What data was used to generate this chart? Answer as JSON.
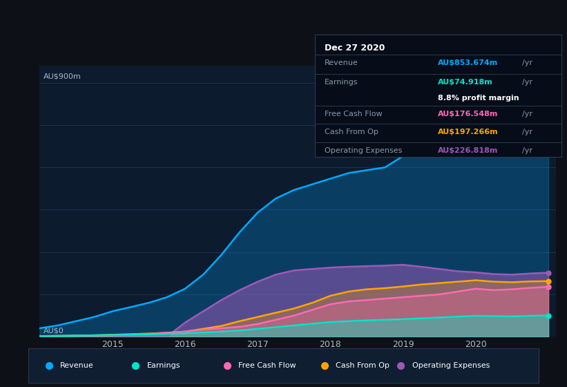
{
  "bg_color": "#0d1117",
  "plot_bg_color": "#0d1b2e",
  "grid_color": "#1e3050",
  "series": {
    "Revenue": {
      "color": "#00aaff",
      "fill_alpha": 0.25
    },
    "Earnings": {
      "color": "#00e5c8",
      "fill_alpha": 0.4
    },
    "Free Cash Flow": {
      "color": "#ff69b4",
      "fill_alpha": 0.3
    },
    "Cash From Op": {
      "color": "#ffa500",
      "fill_alpha": 0.3
    },
    "Operating Expenses": {
      "color": "#9b59b6",
      "fill_alpha": 0.55
    }
  },
  "x": [
    2014.0,
    2014.25,
    2014.5,
    2014.75,
    2015.0,
    2015.25,
    2015.5,
    2015.75,
    2016.0,
    2016.25,
    2016.5,
    2016.75,
    2017.0,
    2017.25,
    2017.5,
    2017.75,
    2018.0,
    2018.25,
    2018.5,
    2018.75,
    2019.0,
    2019.25,
    2019.5,
    2019.75,
    2020.0,
    2020.25,
    2020.5,
    2020.75,
    2021.0
  ],
  "revenue": [
    30,
    40,
    55,
    70,
    90,
    105,
    120,
    140,
    170,
    220,
    290,
    370,
    440,
    490,
    520,
    540,
    560,
    580,
    590,
    600,
    640,
    700,
    760,
    820,
    860,
    840,
    820,
    840,
    854
  ],
  "earnings": [
    2,
    3,
    4,
    5,
    6,
    7,
    8,
    10,
    12,
    15,
    18,
    22,
    28,
    34,
    40,
    46,
    52,
    55,
    58,
    60,
    62,
    65,
    68,
    71,
    74,
    73,
    72,
    74,
    75
  ],
  "fcf": [
    1,
    2,
    3,
    4,
    5,
    8,
    10,
    14,
    18,
    25,
    30,
    35,
    45,
    60,
    75,
    95,
    115,
    125,
    130,
    135,
    140,
    145,
    150,
    160,
    170,
    165,
    168,
    173,
    177
  ],
  "cashop": [
    2,
    3,
    4,
    5,
    7,
    9,
    11,
    14,
    18,
    28,
    38,
    55,
    70,
    85,
    100,
    120,
    145,
    160,
    168,
    172,
    178,
    185,
    190,
    195,
    200,
    195,
    193,
    196,
    197
  ],
  "opex": [
    0,
    0,
    0,
    0,
    0,
    0,
    0,
    0,
    50,
    90,
    130,
    165,
    195,
    220,
    235,
    240,
    245,
    248,
    250,
    252,
    255,
    248,
    240,
    232,
    228,
    222,
    220,
    224,
    227
  ],
  "tooltip": {
    "date": "Dec 27 2020",
    "revenue_val": "AU$853.674m",
    "earnings_val": "AU$74.918m",
    "profit_margin": "8.8%",
    "fcf_val": "AU$176.548m",
    "cashop_val": "AU$197.266m",
    "opex_val": "AU$226.818m",
    "revenue_color": "#00aaff",
    "earnings_color": "#00e5c8",
    "fcf_color": "#ff69b4",
    "cashop_color": "#ffa500",
    "opex_color": "#9b59b6"
  },
  "xlim": [
    2014.0,
    2021.1
  ],
  "ylim": [
    0,
    960
  ],
  "xticks": [
    2015,
    2016,
    2017,
    2018,
    2019,
    2020
  ],
  "ytick_900_label": "AU$900m",
  "ytick_0_label": "AU$0",
  "legend_items": [
    "Revenue",
    "Earnings",
    "Free Cash Flow",
    "Cash From Op",
    "Operating Expenses"
  ],
  "legend_colors": [
    "#00aaff",
    "#00e5c8",
    "#ff69b4",
    "#ffa500",
    "#9b59b6"
  ]
}
